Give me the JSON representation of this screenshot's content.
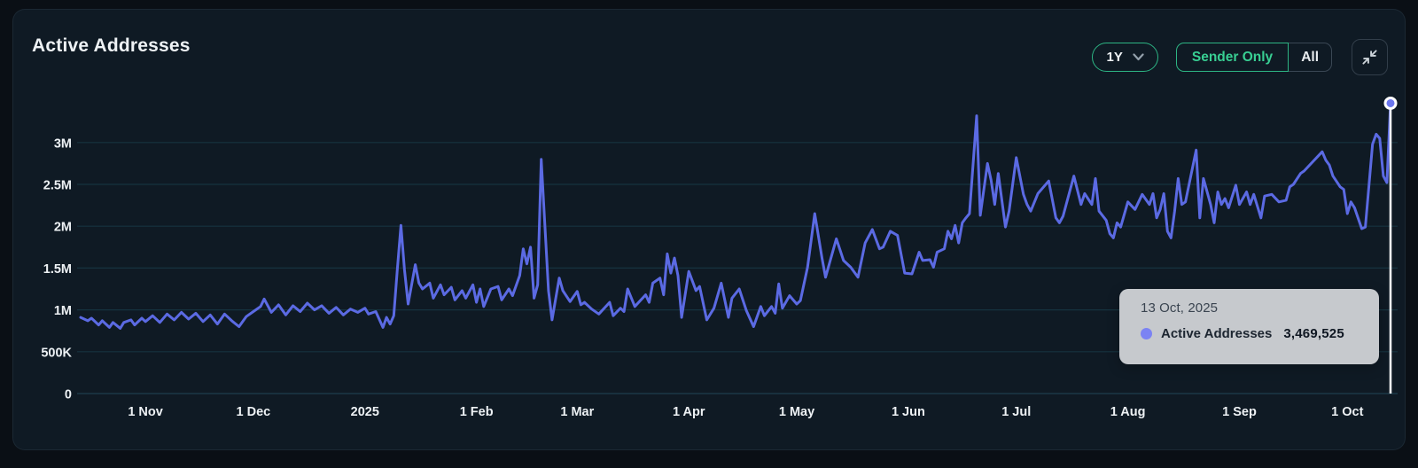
{
  "header": {
    "title": "Active Addresses"
  },
  "controls": {
    "range_selector": {
      "label": "1Y"
    },
    "mode_toggle": {
      "options": [
        "Sender Only",
        "All"
      ],
      "selected": "Sender Only"
    }
  },
  "tooltip": {
    "date": "13 Oct, 2025",
    "series": "Active Addresses",
    "value": "3,469,525"
  },
  "colors": {
    "accent_green": "#2db584",
    "accent_green_text": "#38cf93",
    "line": "#5b6ae3",
    "marker_dot": "#6b76ee",
    "tooltip_dot": "#7b83f3",
    "tooltip_bg": "#c6c9cd",
    "card_bg": "#0f1a24",
    "page_bg": "#0a0f15",
    "gridline": "#16333f",
    "crosshair": "#f2f4f6"
  },
  "chart_data": {
    "type": "line",
    "title": "Active Addresses",
    "xlabel": "",
    "ylabel": "",
    "unit": "millions of active addresses",
    "grid": "horizontal",
    "legend_position": "none",
    "x_range": {
      "start": "14 Oct 2024",
      "end": "13 Oct 2025",
      "t_unit": "days since start",
      "t_max": 364
    },
    "ylim": [
      0,
      3.5
    ],
    "y_ticks": [
      {
        "v": 0.0,
        "label": "0"
      },
      {
        "v": 0.5,
        "label": "500K"
      },
      {
        "v": 1.0,
        "label": "1M"
      },
      {
        "v": 1.5,
        "label": "1.5M"
      },
      {
        "v": 2.0,
        "label": "2M"
      },
      {
        "v": 2.5,
        "label": "2.5M"
      },
      {
        "v": 3.0,
        "label": "3M"
      }
    ],
    "x_ticks": [
      {
        "t": 18,
        "label": "1 Nov"
      },
      {
        "t": 48,
        "label": "1 Dec"
      },
      {
        "t": 79,
        "label": "2025"
      },
      {
        "t": 110,
        "label": "1 Feb"
      },
      {
        "t": 138,
        "label": "1 Mar"
      },
      {
        "t": 169,
        "label": "1 Apr"
      },
      {
        "t": 199,
        "label": "1 May"
      },
      {
        "t": 230,
        "label": "1 Jun"
      },
      {
        "t": 260,
        "label": "1 Jul"
      },
      {
        "t": 291,
        "label": "1 Aug"
      },
      {
        "t": 322,
        "label": "1 Sep"
      },
      {
        "t": 352,
        "label": "1 Oct"
      }
    ],
    "series": [
      {
        "name": "Active Addresses",
        "color": "#5b6ae3",
        "points": [
          [
            0,
            0.91
          ],
          [
            2,
            0.87
          ],
          [
            3,
            0.9
          ],
          [
            5,
            0.82
          ],
          [
            6,
            0.87
          ],
          [
            8,
            0.79
          ],
          [
            9,
            0.85
          ],
          [
            11,
            0.78
          ],
          [
            12,
            0.85
          ],
          [
            14,
            0.88
          ],
          [
            15,
            0.82
          ],
          [
            17,
            0.9
          ],
          [
            18,
            0.86
          ],
          [
            20,
            0.93
          ],
          [
            22,
            0.85
          ],
          [
            24,
            0.95
          ],
          [
            26,
            0.88
          ],
          [
            28,
            0.97
          ],
          [
            30,
            0.89
          ],
          [
            32,
            0.96
          ],
          [
            34,
            0.86
          ],
          [
            36,
            0.94
          ],
          [
            38,
            0.83
          ],
          [
            40,
            0.95
          ],
          [
            42,
            0.87
          ],
          [
            44,
            0.8
          ],
          [
            46,
            0.92
          ],
          [
            48,
            0.98
          ],
          [
            50,
            1.04
          ],
          [
            51,
            1.13
          ],
          [
            53,
            0.97
          ],
          [
            55,
            1.06
          ],
          [
            57,
            0.94
          ],
          [
            59,
            1.05
          ],
          [
            61,
            0.98
          ],
          [
            63,
            1.08
          ],
          [
            65,
            1.0
          ],
          [
            67,
            1.05
          ],
          [
            69,
            0.96
          ],
          [
            71,
            1.03
          ],
          [
            73,
            0.94
          ],
          [
            75,
            1.01
          ],
          [
            77,
            0.97
          ],
          [
            79,
            1.02
          ],
          [
            80,
            0.95
          ],
          [
            82,
            0.98
          ],
          [
            84,
            0.79
          ],
          [
            85,
            0.91
          ],
          [
            86,
            0.83
          ],
          [
            87,
            0.93
          ],
          [
            88,
            1.48
          ],
          [
            89,
            2.01
          ],
          [
            90,
            1.48
          ],
          [
            91,
            1.07
          ],
          [
            93,
            1.54
          ],
          [
            94,
            1.32
          ],
          [
            95,
            1.25
          ],
          [
            97,
            1.32
          ],
          [
            98,
            1.14
          ],
          [
            100,
            1.3
          ],
          [
            101,
            1.18
          ],
          [
            103,
            1.27
          ],
          [
            104,
            1.12
          ],
          [
            106,
            1.23
          ],
          [
            107,
            1.14
          ],
          [
            109,
            1.3
          ],
          [
            110,
            1.09
          ],
          [
            111,
            1.25
          ],
          [
            112,
            1.04
          ],
          [
            114,
            1.25
          ],
          [
            116,
            1.28
          ],
          [
            117,
            1.12
          ],
          [
            119,
            1.25
          ],
          [
            120,
            1.17
          ],
          [
            122,
            1.41
          ],
          [
            123,
            1.73
          ],
          [
            124,
            1.55
          ],
          [
            125,
            1.75
          ],
          [
            126,
            1.14
          ],
          [
            127,
            1.3
          ],
          [
            128,
            2.8
          ],
          [
            130,
            1.23
          ],
          [
            131,
            0.88
          ],
          [
            133,
            1.38
          ],
          [
            134,
            1.23
          ],
          [
            136,
            1.1
          ],
          [
            138,
            1.22
          ],
          [
            139,
            1.06
          ],
          [
            140,
            1.09
          ],
          [
            142,
            1.01
          ],
          [
            144,
            0.95
          ],
          [
            147,
            1.09
          ],
          [
            148,
            0.93
          ],
          [
            150,
            1.02
          ],
          [
            151,
            0.98
          ],
          [
            152,
            1.25
          ],
          [
            154,
            1.04
          ],
          [
            157,
            1.18
          ],
          [
            158,
            1.09
          ],
          [
            159,
            1.32
          ],
          [
            161,
            1.38
          ],
          [
            162,
            1.18
          ],
          [
            163,
            1.67
          ],
          [
            164,
            1.44
          ],
          [
            165,
            1.62
          ],
          [
            166,
            1.41
          ],
          [
            167,
            0.91
          ],
          [
            169,
            1.46
          ],
          [
            171,
            1.23
          ],
          [
            172,
            1.28
          ],
          [
            174,
            0.88
          ],
          [
            176,
            1.02
          ],
          [
            178,
            1.32
          ],
          [
            180,
            0.91
          ],
          [
            181,
            1.14
          ],
          [
            183,
            1.25
          ],
          [
            185,
            0.99
          ],
          [
            187,
            0.8
          ],
          [
            189,
            1.04
          ],
          [
            190,
            0.93
          ],
          [
            192,
            1.04
          ],
          [
            193,
            0.96
          ],
          [
            194,
            1.31
          ],
          [
            195,
            1.02
          ],
          [
            197,
            1.17
          ],
          [
            199,
            1.07
          ],
          [
            200,
            1.11
          ],
          [
            202,
            1.51
          ],
          [
            204,
            2.15
          ],
          [
            206,
            1.62
          ],
          [
            207,
            1.39
          ],
          [
            210,
            1.85
          ],
          [
            212,
            1.59
          ],
          [
            214,
            1.51
          ],
          [
            216,
            1.39
          ],
          [
            218,
            1.8
          ],
          [
            220,
            1.96
          ],
          [
            222,
            1.73
          ],
          [
            223,
            1.75
          ],
          [
            225,
            1.94
          ],
          [
            227,
            1.89
          ],
          [
            229,
            1.44
          ],
          [
            231,
            1.43
          ],
          [
            233,
            1.69
          ],
          [
            234,
            1.59
          ],
          [
            236,
            1.6
          ],
          [
            237,
            1.51
          ],
          [
            238,
            1.69
          ],
          [
            240,
            1.73
          ],
          [
            241,
            1.94
          ],
          [
            242,
            1.85
          ],
          [
            243,
            2.01
          ],
          [
            244,
            1.8
          ],
          [
            245,
            2.04
          ],
          [
            246,
            2.1
          ],
          [
            247,
            2.15
          ],
          [
            249,
            3.32
          ],
          [
            250,
            2.13
          ],
          [
            252,
            2.75
          ],
          [
            253,
            2.55
          ],
          [
            254,
            2.26
          ],
          [
            255,
            2.63
          ],
          [
            257,
            1.99
          ],
          [
            258,
            2.18
          ],
          [
            260,
            2.82
          ],
          [
            262,
            2.38
          ],
          [
            263,
            2.26
          ],
          [
            264,
            2.18
          ],
          [
            266,
            2.39
          ],
          [
            269,
            2.54
          ],
          [
            271,
            2.1
          ],
          [
            272,
            2.04
          ],
          [
            273,
            2.12
          ],
          [
            276,
            2.6
          ],
          [
            278,
            2.26
          ],
          [
            279,
            2.39
          ],
          [
            281,
            2.26
          ],
          [
            282,
            2.57
          ],
          [
            283,
            2.18
          ],
          [
            285,
            2.07
          ],
          [
            286,
            1.91
          ],
          [
            287,
            1.86
          ],
          [
            288,
            2.04
          ],
          [
            289,
            1.99
          ],
          [
            291,
            2.29
          ],
          [
            293,
            2.2
          ],
          [
            295,
            2.38
          ],
          [
            297,
            2.26
          ],
          [
            298,
            2.39
          ],
          [
            299,
            2.1
          ],
          [
            300,
            2.2
          ],
          [
            301,
            2.39
          ],
          [
            302,
            1.94
          ],
          [
            303,
            1.86
          ],
          [
            304,
            2.18
          ],
          [
            305,
            2.57
          ],
          [
            306,
            2.26
          ],
          [
            307,
            2.29
          ],
          [
            310,
            2.91
          ],
          [
            311,
            2.1
          ],
          [
            312,
            2.57
          ],
          [
            314,
            2.26
          ],
          [
            315,
            2.04
          ],
          [
            316,
            2.41
          ],
          [
            317,
            2.26
          ],
          [
            318,
            2.33
          ],
          [
            319,
            2.22
          ],
          [
            321,
            2.49
          ],
          [
            322,
            2.26
          ],
          [
            324,
            2.41
          ],
          [
            325,
            2.26
          ],
          [
            326,
            2.38
          ],
          [
            328,
            2.1
          ],
          [
            329,
            2.36
          ],
          [
            331,
            2.38
          ],
          [
            333,
            2.29
          ],
          [
            335,
            2.31
          ],
          [
            336,
            2.47
          ],
          [
            337,
            2.5
          ],
          [
            339,
            2.63
          ],
          [
            340,
            2.66
          ],
          [
            345,
            2.89
          ],
          [
            346,
            2.79
          ],
          [
            347,
            2.73
          ],
          [
            348,
            2.6
          ],
          [
            350,
            2.47
          ],
          [
            351,
            2.44
          ],
          [
            352,
            2.15
          ],
          [
            353,
            2.29
          ],
          [
            354,
            2.22
          ],
          [
            356,
            1.97
          ],
          [
            357,
            1.99
          ],
          [
            359,
            2.98
          ],
          [
            360,
            3.1
          ],
          [
            361,
            3.05
          ],
          [
            362,
            2.6
          ],
          [
            363,
            2.52
          ],
          [
            364,
            3.47
          ]
        ]
      }
    ],
    "crosshair": {
      "t": 364,
      "v": 3.4695,
      "date": "13 Oct, 2025",
      "value": 3469525
    }
  }
}
